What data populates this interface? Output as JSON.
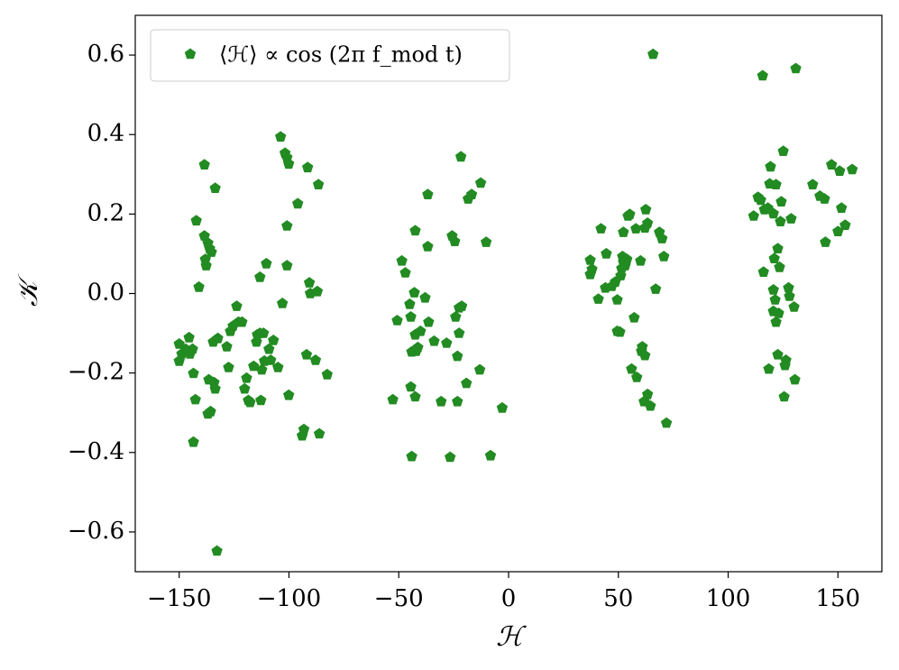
{
  "chart_data": {
    "type": "scatter",
    "xlabel": "ℋ",
    "ylabel": "𝒦",
    "xlim": [
      -170,
      170
    ],
    "ylim": [
      -0.7,
      0.7
    ],
    "xticks": [
      {
        "value": -150,
        "label": "−150"
      },
      {
        "value": -100,
        "label": "−100"
      },
      {
        "value": -50,
        "label": "−50"
      },
      0,
      50,
      100,
      150
    ],
    "yticks": [
      {
        "value": -0.6,
        "label": "−0.6"
      },
      {
        "value": -0.4,
        "label": "−0.4"
      },
      {
        "value": -0.2,
        "label": "−0.2"
      },
      {
        "value": 0,
        "label": "0.0"
      },
      0.2,
      0.4,
      0.6
    ],
    "legend": "upper left",
    "marker": "pentagon",
    "series": [
      {
        "name": "⟨ℋ⟩ ∝ cos (2π f_mod t)",
        "color": "#228b22",
        "x": [
          -150.0,
          -150.0,
          -148.8,
          -147.1,
          -145.5,
          -145.1,
          -143.9,
          -143.5,
          -142.2,
          -141.0,
          -142.6,
          -143.5,
          -138.5,
          -138.5,
          -138.1,
          -137.7,
          -136.1,
          -136.9,
          -135.3,
          -136.9,
          -135.7,
          -136.5,
          -134.1,
          -134.5,
          -133.6,
          -133.6,
          -132.8,
          -132.4,
          -128.3,
          -127.5,
          -126.7,
          -125.5,
          -123.8,
          -123.0,
          -121.4,
          -120.2,
          -119.3,
          -118.5,
          -117.7,
          -116.1,
          -114.8,
          -114.4,
          -113.2,
          -112.4,
          -113.2,
          -112.8,
          -111.6,
          -110.3,
          -111.2,
          -109.1,
          -108.3,
          -107.1,
          -105.0,
          -103.8,
          -103.0,
          -101.8,
          -100.9,
          -100.1,
          -100.9,
          -100.9,
          -100.1,
          -96.0,
          -94.0,
          -93.2,
          -92.0,
          -91.5,
          -90.7,
          -90.3,
          -87.9,
          -87.1,
          -86.2,
          -86.6,
          -82.6,
          -52.7,
          -50.7,
          -48.6,
          -47.0,
          -45.0,
          -44.5,
          -44.1,
          -44.5,
          -44.1,
          -42.9,
          -42.5,
          -42.5,
          -42.5,
          -42.1,
          -41.3,
          -40.1,
          -38.0,
          -36.8,
          -36.4,
          -36.8,
          -33.9,
          -30.7,
          -28.2,
          -26.6,
          -25.7,
          -24.5,
          -24.1,
          -23.3,
          -23.3,
          -22.5,
          -22.5,
          -21.7,
          -21.3,
          -19.2,
          -18.4,
          -16.8,
          -13.1,
          -12.7,
          -10.2,
          -8.2,
          -2.9,
          37.2,
          37.2,
          38.0,
          40.9,
          42.1,
          44.1,
          44.5,
          47.0,
          48.6,
          49.5,
          49.5,
          50.7,
          51.1,
          51.5,
          51.9,
          52.3,
          52.3,
          53.1,
          53.9,
          54.4,
          55.2,
          56.0,
          57.2,
          58.4,
          58.0,
          60.1,
          60.5,
          60.9,
          61.7,
          62.1,
          62.1,
          62.5,
          63.3,
          63.3,
          64.6,
          65.8,
          67.0,
          68.7,
          69.9,
          70.7,
          71.9,
          111.6,
          113.6,
          114.8,
          115.7,
          116.1,
          116.5,
          118.1,
          118.5,
          118.9,
          119.3,
          120.6,
          120.6,
          121.0,
          121.8,
          122.6,
          120.6,
          121.4,
          121.8,
          123.4,
          122.6,
          123.0,
          123.8,
          124.2,
          125.1,
          125.5,
          125.9,
          126.3,
          127.5,
          127.9,
          128.7,
          130.0,
          130.4,
          130.8,
          138.5,
          141.8,
          144.3,
          143.9,
          147.1,
          150.0,
          150.8,
          151.6,
          153.3,
          156.5
        ],
        "values": [
          -0.127,
          -0.17,
          -0.152,
          -0.14,
          -0.111,
          -0.152,
          -0.14,
          -0.201,
          0.183,
          0.016,
          -0.267,
          -0.374,
          0.324,
          0.145,
          0.086,
          0.07,
          0.113,
          0.127,
          0.104,
          -0.303,
          -0.297,
          -0.217,
          -0.224,
          -0.122,
          0.265,
          -0.24,
          -0.648,
          -0.113,
          -0.134,
          -0.186,
          -0.095,
          -0.082,
          -0.032,
          -0.072,
          -0.072,
          -0.24,
          -0.213,
          -0.269,
          -0.274,
          -0.183,
          -0.122,
          -0.104,
          -0.1,
          -0.192,
          0.041,
          -0.269,
          -0.1,
          0.075,
          -0.17,
          -0.14,
          -0.168,
          -0.118,
          -0.186,
          0.394,
          -0.025,
          0.353,
          0.342,
          0.326,
          0.17,
          0.07,
          -0.256,
          0.226,
          -0.358,
          -0.342,
          -0.154,
          0.317,
          0.027,
          0.0,
          -0.168,
          0.005,
          -0.353,
          0.274,
          -0.204,
          -0.267,
          -0.068,
          0.082,
          0.052,
          -0.027,
          -0.059,
          -0.147,
          -0.235,
          -0.41,
          0.002,
          0.158,
          -0.104,
          -0.26,
          -0.145,
          -0.136,
          -0.095,
          -0.011,
          0.249,
          -0.072,
          0.118,
          -0.12,
          -0.272,
          -0.125,
          -0.412,
          0.145,
          0.131,
          -0.059,
          -0.272,
          -0.158,
          -0.1,
          -0.036,
          0.344,
          -0.032,
          -0.226,
          0.238,
          0.249,
          -0.192,
          0.278,
          0.129,
          -0.408,
          -0.288,
          0.084,
          0.048,
          0.061,
          -0.014,
          0.163,
          0.014,
          0.1,
          0.018,
          0.029,
          -0.016,
          -0.095,
          -0.097,
          0.045,
          0.063,
          0.093,
          0.154,
          0.079,
          0.07,
          0.086,
          0.195,
          0.199,
          -0.19,
          -0.061,
          -0.211,
          0.163,
          0.082,
          -0.145,
          -0.134,
          -0.272,
          -0.156,
          0.165,
          0.211,
          0.177,
          -0.254,
          -0.283,
          0.602,
          0.011,
          0.154,
          0.138,
          0.093,
          -0.326,
          0.195,
          0.242,
          0.235,
          0.548,
          0.054,
          0.211,
          0.215,
          -0.19,
          0.276,
          0.319,
          0.201,
          -0.045,
          0.088,
          0.274,
          0.113,
          0.009,
          -0.016,
          -0.072,
          0.066,
          -0.154,
          -0.05,
          0.181,
          0.231,
          0.358,
          -0.26,
          -0.181,
          -0.168,
          0.014,
          -0.007,
          0.188,
          -0.034,
          -0.217,
          0.566,
          0.274,
          0.245,
          0.129,
          0.238,
          0.324,
          0.156,
          0.308,
          0.215,
          0.172,
          0.312
        ]
      }
    ]
  }
}
